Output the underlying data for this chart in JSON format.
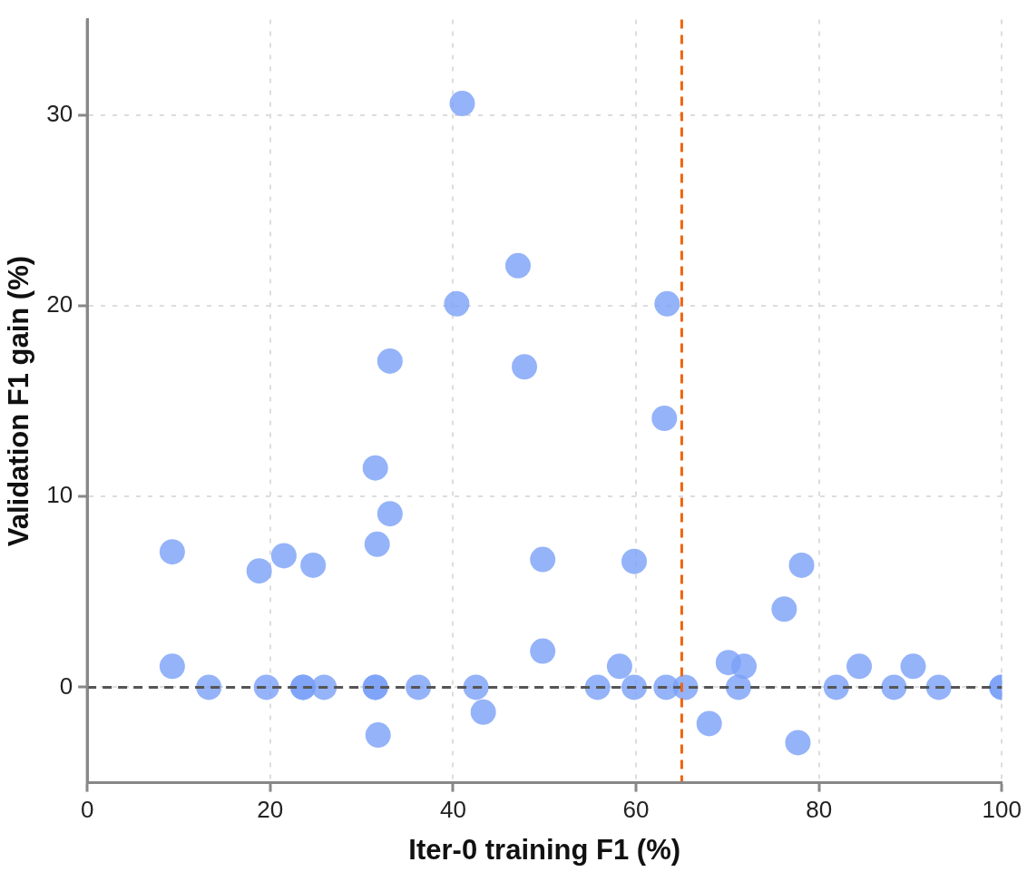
{
  "chart_data": {
    "type": "scatter",
    "xlabel": "Iter-0 training F1 (%)",
    "ylabel": "Validation F1 gain (%)",
    "x": [
      9.3,
      9.3,
      13.3,
      18.8,
      21.5,
      19.6,
      23.6,
      23.6,
      24.7,
      25.9,
      31.5,
      31.7,
      31.5,
      31.5,
      31.8,
      33.1,
      33.1,
      36.2,
      40.4,
      41.0,
      42.5,
      43.3,
      47.1,
      47.8,
      49.8,
      49.8,
      55.8,
      58.2,
      59.8,
      59.8,
      63.1,
      63.4,
      63.3,
      65.4,
      68.0,
      70.1,
      71.8,
      71.2,
      76.2,
      77.7,
      78.1,
      81.9,
      84.4,
      88.2,
      90.3,
      93.1,
      100,
      100
    ],
    "series": [
      {
        "color": "#7aa0f7",
        "values": [
          7.1,
          1.1,
          0,
          6.1,
          6.9,
          0,
          0,
          0,
          6.4,
          0,
          11.5,
          7.5,
          0,
          0,
          -2.5,
          17.1,
          9.1,
          0,
          20.1,
          30.6,
          0,
          -1.3,
          22.1,
          16.8,
          6.7,
          1.9,
          0,
          1.1,
          6.6,
          0,
          14.1,
          20.1,
          0,
          0,
          -1.9,
          1.3,
          1.1,
          0,
          4.1,
          -2.9,
          6.4,
          0,
          1.1,
          0,
          1.1,
          0,
          0,
          0
        ]
      }
    ],
    "xlim": [
      0,
      100
    ],
    "xticks": [
      0,
      20,
      40,
      60,
      80,
      100
    ],
    "ylim": [
      -5,
      35
    ],
    "yticks": [
      0,
      10,
      20,
      30
    ],
    "grid": true,
    "legend": false,
    "marker": "circle",
    "ref_lines": [
      {
        "axis": "y",
        "value": 0,
        "color": "#555555",
        "line_style": "dashed"
      },
      {
        "axis": "x",
        "value": 65,
        "color": "#f0650e",
        "line_style": "dashed"
      }
    ]
  }
}
